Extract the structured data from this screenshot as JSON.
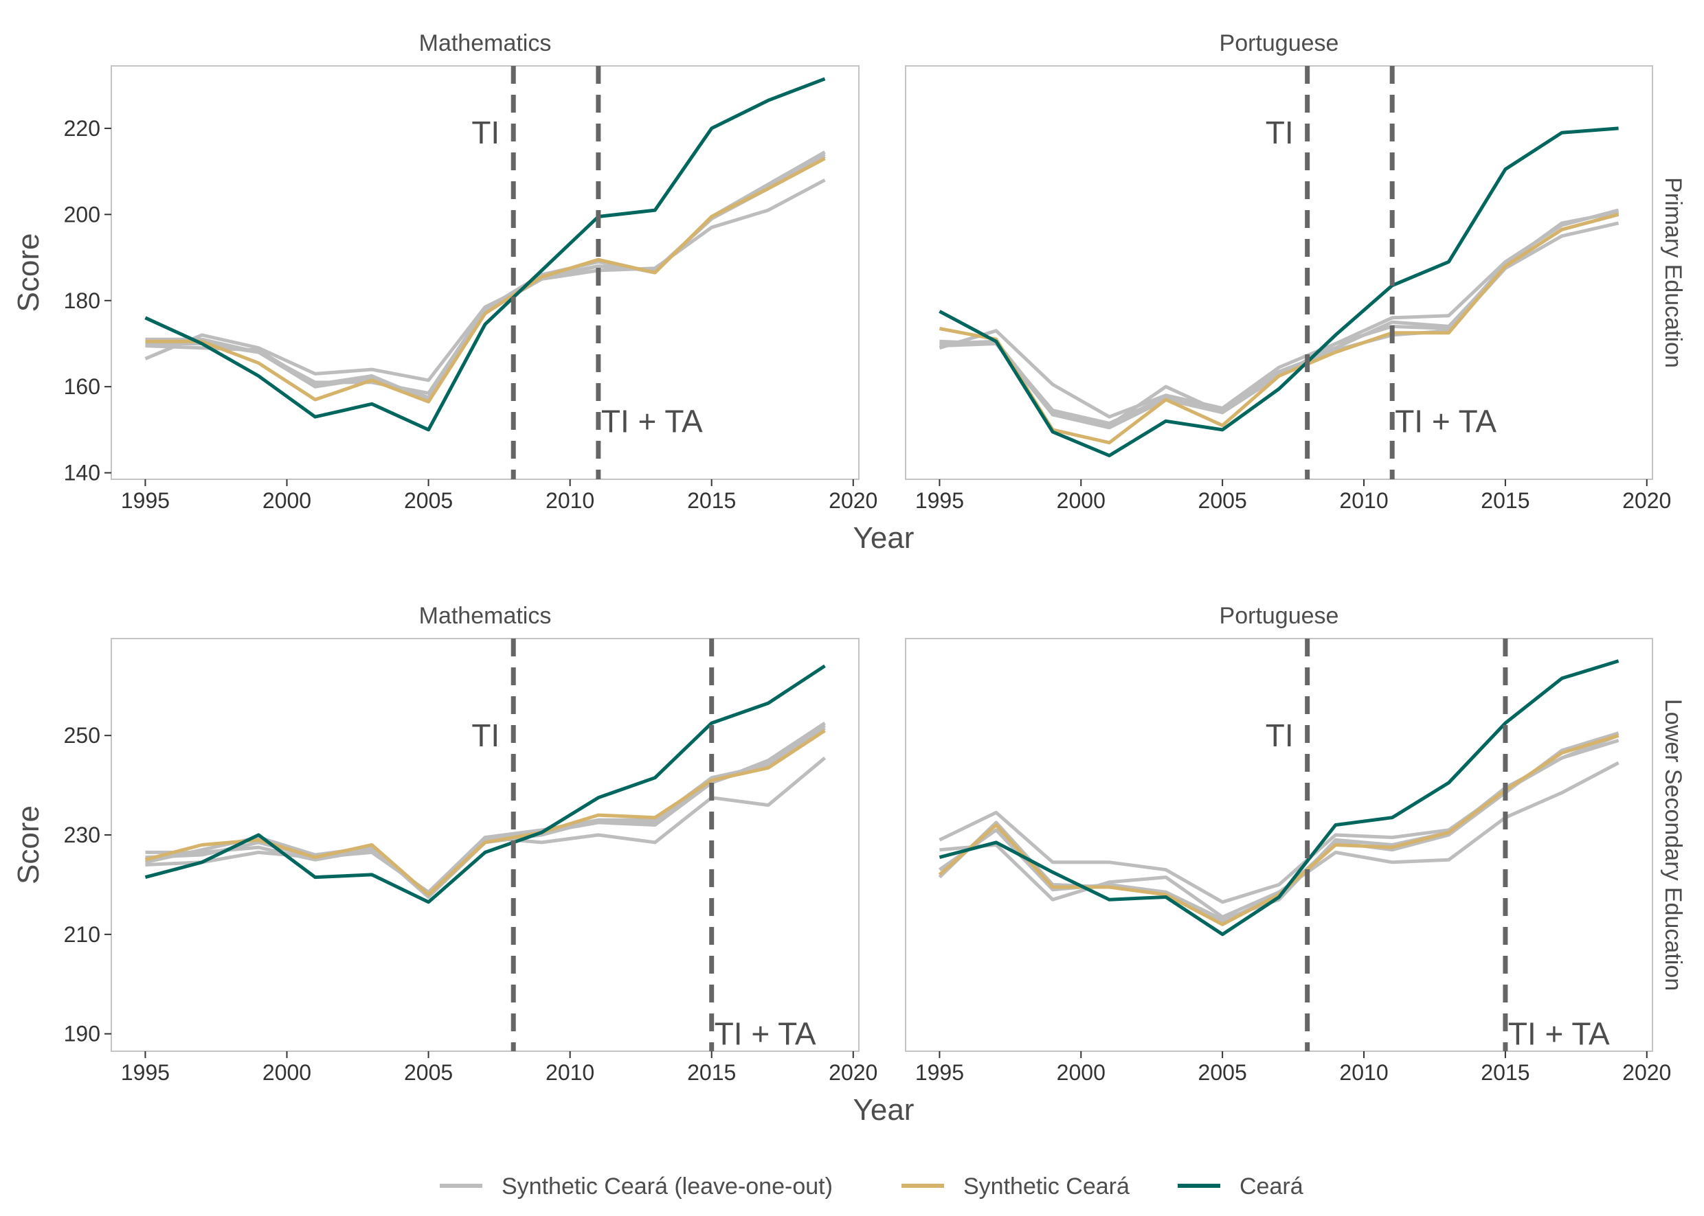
{
  "chart_data": {
    "type": "line",
    "xlabel": "Year",
    "ylabel": "Score",
    "x_ticks": [
      1995,
      2000,
      2005,
      2010,
      2015,
      2020
    ],
    "xlim": [
      1993.8,
      2020.2
    ],
    "grid": false,
    "legend_position": "bottom",
    "colors": {
      "loo": "#bdbdbd",
      "synthetic": "#d5b36a",
      "ceara": "#00665e",
      "vline": "#666666"
    },
    "legend": [
      {
        "label": "Synthetic Ceará (leave-one-out)",
        "series": "loo"
      },
      {
        "label": "Synthetic Ceará",
        "series": "synthetic"
      },
      {
        "label": "Ceará",
        "series": "ceara"
      }
    ],
    "x": [
      1995,
      1997,
      1999,
      2001,
      2003,
      2005,
      2007,
      2009,
      2011,
      2013,
      2015,
      2017,
      2019
    ],
    "rows": [
      {
        "strip_label": "Primary Education",
        "ylim": [
          138.5,
          234.5
        ],
        "y_ticks": [
          140,
          160,
          180,
          200,
          220
        ],
        "panels": [
          {
            "strip_label": "Mathematics",
            "vlines": [
              {
                "x": 2008,
                "label": "TI",
                "label_side": "left",
                "label_y": 219
              },
              {
                "x": 2011,
                "label": "TI + TA",
                "label_side": "right",
                "label_y": 152
              }
            ],
            "ceara": [
              176,
              170,
              162.5,
              153,
              156,
              150,
              174.5,
              187,
              199.5,
              201,
              220,
              226.5,
              231.5
            ],
            "synthetic": [
              170.5,
              170.5,
              165.5,
              157,
              161.5,
              156.5,
              177,
              185.5,
              189.5,
              186.5,
              199.5,
              206,
              213
            ],
            "loo": [
              [
                166.5,
                172,
                169,
                163,
                164,
                161.5,
                178.5,
                185,
                187,
                187.5,
                197,
                201,
                208
              ],
              [
                169.5,
                169,
                168.5,
                160.5,
                162.5,
                157,
                177.5,
                185,
                188,
                187,
                199,
                206.5,
                214
              ],
              [
                170,
                170,
                168,
                161,
                161,
                158.5,
                178,
                186,
                189,
                186.5,
                199.5,
                207,
                214.5
              ],
              [
                171,
                171,
                168,
                160,
                162,
                157.5,
                177.5,
                185.5,
                188,
                187,
                199,
                206,
                213.5
              ]
            ]
          },
          {
            "strip_label": "Portuguese",
            "vlines": [
              {
                "x": 2008,
                "label": "TI",
                "label_side": "left",
                "label_y": 219
              },
              {
                "x": 2011,
                "label": "TI + TA",
                "label_side": "right",
                "label_y": 152
              }
            ],
            "ceara": [
              177.5,
              170.5,
              149.5,
              144,
              152,
              150,
              159.5,
              172,
              183.5,
              189,
              210.5,
              219,
              220
            ],
            "synthetic": [
              173.5,
              171,
              150,
              147,
              157,
              151,
              162.5,
              168,
              172.5,
              172.5,
              188,
              196.5,
              200
            ],
            "loo": [
              [
                169,
                173,
                160.5,
                153,
                158,
                155,
                164.5,
                170,
                176,
                176.5,
                189,
                197.5,
                201
              ],
              [
                170,
                170.5,
                154,
                151,
                160,
                154,
                163,
                169,
                175,
                174,
                188,
                196.5,
                200
              ],
              [
                169.5,
                170,
                153.5,
                150.5,
                157,
                154,
                162.5,
                170,
                174,
                173.5,
                188.5,
                198,
                200.5
              ],
              [
                170.5,
                170,
                154.5,
                151.5,
                157.5,
                154.5,
                163.5,
                168.5,
                172,
                173,
                187.5,
                195,
                198
              ]
            ]
          }
        ]
      },
      {
        "strip_label": "Lower Secondary Education",
        "ylim": [
          186.5,
          269.5
        ],
        "y_ticks": [
          190,
          210,
          230,
          250
        ],
        "panels": [
          {
            "strip_label": "Mathematics",
            "vlines": [
              {
                "x": 2008,
                "label": "TI",
                "label_side": "left",
                "label_y": 250
              },
              {
                "x": 2015,
                "label": "TI + TA",
                "label_side": "right",
                "label_y": 190
              }
            ],
            "ceara": [
              221.5,
              224.5,
              230,
              221.5,
              222,
              216.5,
              226.5,
              230.5,
              237.5,
              241.5,
              252.5,
              256.5,
              264
            ],
            "synthetic": [
              225,
              228,
              229,
              225.5,
              228,
              218,
              228.5,
              230.5,
              234,
              233.5,
              241,
              243.5,
              251
            ],
            "loo": [
              [
                224,
                224.5,
                226.5,
                225.5,
                226.5,
                218.5,
                229.5,
                228.5,
                230,
                228.5,
                237.5,
                236,
                245.5
              ],
              [
                226.5,
                226.5,
                227.5,
                225,
                227,
                218,
                229.5,
                231,
                233,
                232.5,
                240.5,
                245,
                252.5
              ],
              [
                225.5,
                226,
                228.5,
                225.5,
                227.5,
                218,
                229,
                230.5,
                232.5,
                232,
                240.5,
                244.5,
                252
              ],
              [
                224.5,
                227,
                229.5,
                226,
                227.5,
                217.5,
                228.5,
                230,
                233,
                233,
                241.5,
                244,
                251.5
              ]
            ]
          },
          {
            "strip_label": "Portuguese",
            "vlines": [
              {
                "x": 2008,
                "label": "TI",
                "label_side": "left",
                "label_y": 250
              },
              {
                "x": 2015,
                "label": "TI + TA",
                "label_side": "right",
                "label_y": 190
              }
            ],
            "ceara": [
              225.5,
              228.5,
              222.5,
              217,
              217.5,
              210,
              217.5,
              232,
              233.5,
              240.5,
              252.5,
              261.5,
              265
            ],
            "synthetic": [
              222,
              232,
              219.5,
              219.5,
              218,
              212,
              218,
              228,
              227.5,
              230.5,
              239,
              246.5,
              250
            ],
            "loo": [
              [
                229,
                234.5,
                224.5,
                224.5,
                223,
                216.5,
                220,
                230,
                229.5,
                231,
                239,
                245.5,
                249
              ],
              [
                227,
                228,
                217,
                220.5,
                221.5,
                213.5,
                218.5,
                226.5,
                224.5,
                225,
                233.5,
                238.5,
                244.5
              ],
              [
                223,
                231,
                219,
                220,
                218.5,
                212.5,
                218,
                228.5,
                227,
                230,
                238.5,
                247,
                250.5
              ],
              [
                221.5,
                232.5,
                220,
                219.5,
                218.5,
                213,
                217,
                229,
                228,
                230.5,
                239.5,
                245.5,
                250
              ]
            ]
          }
        ]
      }
    ]
  }
}
